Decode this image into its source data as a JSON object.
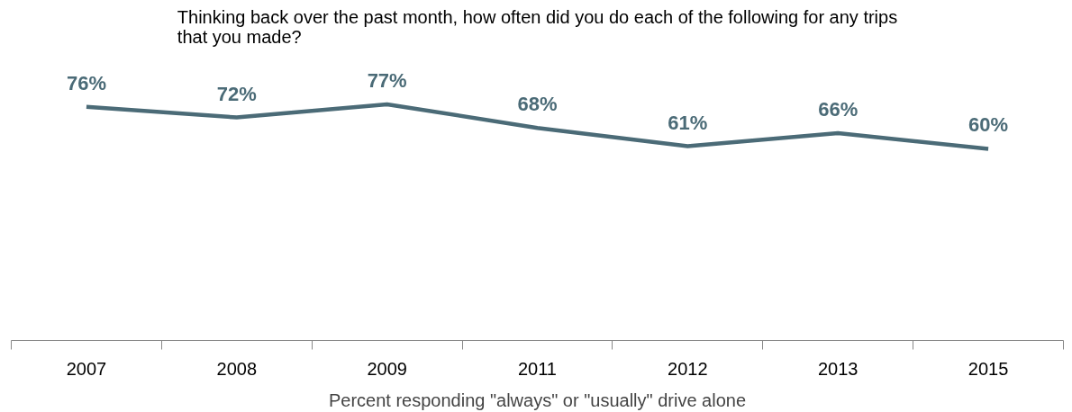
{
  "chart_data": {
    "type": "line",
    "title": "Thinking back over the past month, how often did you do each of the following for any trips that you made?",
    "xlabel": "Percent responding \"always\" or \"usually\" drive alone",
    "categories": [
      "2007",
      "2008",
      "2009",
      "2011",
      "2012",
      "2013",
      "2015"
    ],
    "series": [
      {
        "color": "#4b6b77",
        "values": [
          76,
          72,
          77,
          68,
          61,
          66,
          60
        ],
        "value_labels": [
          "76%",
          "72%",
          "77%",
          "68%",
          "61%",
          "66%",
          "60%"
        ]
      }
    ],
    "grid": false,
    "marker": "none",
    "line_style": "solid",
    "tick_labels": "x"
  }
}
